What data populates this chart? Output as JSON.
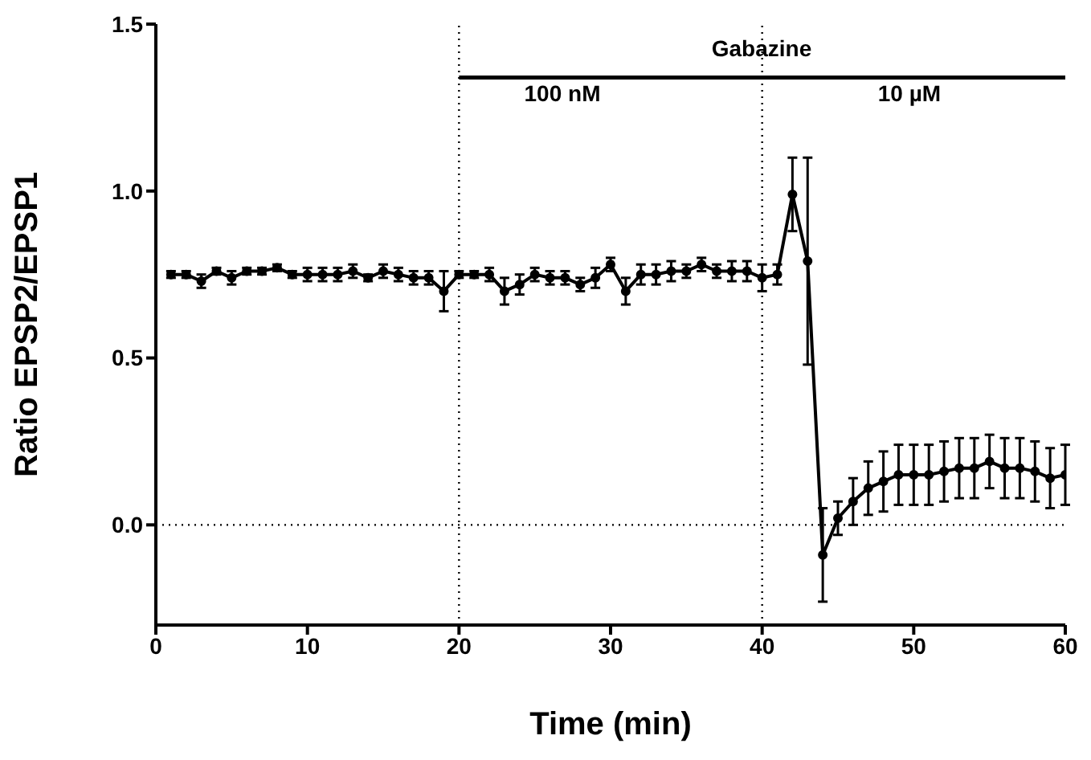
{
  "chart_data": {
    "type": "line",
    "xlabel": "Time (min)",
    "ylabel": "Ratio EPSP2/EPSP1",
    "x": [
      1,
      2,
      3,
      4,
      5,
      6,
      7,
      8,
      9,
      10,
      11,
      12,
      13,
      14,
      15,
      16,
      17,
      18,
      19,
      20,
      21,
      22,
      23,
      24,
      25,
      26,
      27,
      28,
      29,
      30,
      31,
      32,
      33,
      34,
      35,
      36,
      37,
      38,
      39,
      40,
      41,
      42,
      43,
      44,
      45,
      46,
      47,
      48,
      49,
      50,
      51,
      52,
      53,
      54,
      55,
      56,
      57,
      58,
      59,
      60
    ],
    "series": [
      {
        "color": "#000000",
        "values": [
          0.75,
          0.75,
          0.73,
          0.76,
          0.74,
          0.76,
          0.76,
          0.77,
          0.75,
          0.75,
          0.75,
          0.75,
          0.76,
          0.74,
          0.76,
          0.75,
          0.74,
          0.74,
          0.7,
          0.75,
          0.75,
          0.75,
          0.7,
          0.72,
          0.75,
          0.74,
          0.74,
          0.72,
          0.74,
          0.78,
          0.7,
          0.75,
          0.75,
          0.76,
          0.76,
          0.78,
          0.76,
          0.76,
          0.76,
          0.74,
          0.75,
          0.99,
          0.79,
          -0.09,
          0.02,
          0.07,
          0.11,
          0.13,
          0.15,
          0.15,
          0.15,
          0.16,
          0.17,
          0.17,
          0.19,
          0.17,
          0.17,
          0.16,
          0.14,
          0.15
        ],
        "errors": [
          0.01,
          0.01,
          0.02,
          0.01,
          0.02,
          0.01,
          0.01,
          0.01,
          0.01,
          0.02,
          0.02,
          0.02,
          0.02,
          0.01,
          0.02,
          0.02,
          0.02,
          0.02,
          0.06,
          0.01,
          0.01,
          0.02,
          0.04,
          0.03,
          0.02,
          0.02,
          0.02,
          0.02,
          0.03,
          0.02,
          0.04,
          0.03,
          0.03,
          0.03,
          0.02,
          0.02,
          0.02,
          0.03,
          0.03,
          0.04,
          0.03,
          0.11,
          0.31,
          0.14,
          0.05,
          0.07,
          0.08,
          0.09,
          0.09,
          0.09,
          0.09,
          0.09,
          0.09,
          0.09,
          0.08,
          0.09,
          0.09,
          0.09,
          0.09,
          0.09
        ]
      }
    ],
    "xlim": [
      0,
      60
    ],
    "xticks": [
      0,
      10,
      20,
      30,
      40,
      50,
      60
    ],
    "ylim": [
      -0.3,
      1.5
    ],
    "yticks": [
      {
        "value": 0,
        "label": "0.0"
      },
      0.5,
      {
        "value": 1,
        "label": "1.0"
      },
      1.5
    ],
    "marker": "circle",
    "line_style": "solid",
    "ref_lines": [
      {
        "axis": "x",
        "value": 20,
        "line_style": "dotted",
        "color": "#000000"
      },
      {
        "axis": "x",
        "value": 40,
        "line_style": "dotted",
        "color": "#000000"
      },
      {
        "axis": "y",
        "value": 0,
        "line_style": "dotted",
        "color": "#000000"
      }
    ],
    "annotations": [
      "Gabazine",
      "100 nM",
      "10 µM"
    ]
  }
}
